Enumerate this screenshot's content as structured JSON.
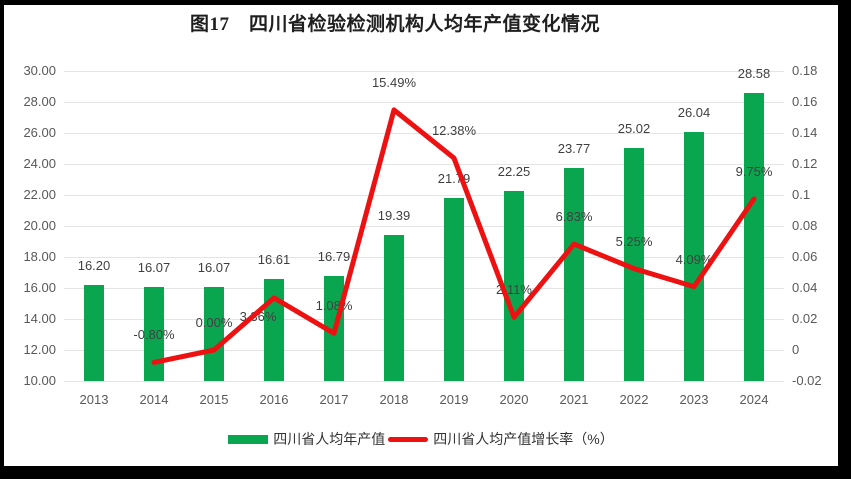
{
  "chart_data": {
    "type": "combo-bar-line",
    "title": "图17　四川省检验检测机构人均年产值变化情况",
    "categories": [
      "2013",
      "2014",
      "2015",
      "2016",
      "2017",
      "2018",
      "2019",
      "2020",
      "2021",
      "2022",
      "2023",
      "2024"
    ],
    "series": [
      {
        "name": "四川省人均年产值",
        "type": "bar",
        "axis": "left",
        "color": "#0aa64f",
        "values": [
          16.2,
          16.07,
          16.07,
          16.61,
          16.79,
          19.39,
          21.79,
          22.25,
          23.77,
          25.02,
          26.04,
          28.58
        ],
        "labels": [
          "16.20",
          "16.07",
          "16.07",
          "16.61",
          "16.79",
          "19.39",
          "21.79",
          "22.25",
          "23.77",
          "25.02",
          "26.04",
          "28.58"
        ]
      },
      {
        "name": "四川省人均产值增长率（%）",
        "type": "line",
        "axis": "right",
        "color": "#ed1111",
        "values": [
          null,
          -0.008,
          0.0,
          0.0336,
          0.0108,
          0.1549,
          0.1238,
          0.0211,
          0.0683,
          0.0525,
          0.0409,
          0.0975
        ],
        "labels": [
          null,
          "-0.80%",
          "0.00%",
          "3.36%",
          "1.08%",
          "15.49%",
          "12.38%",
          "2.11%",
          "6.83%",
          "5.25%",
          "4.09%",
          "9.75%"
        ]
      }
    ],
    "left_axis": {
      "min": 10,
      "max": 30,
      "ticks": [
        "30.00",
        "28.00",
        "26.00",
        "24.00",
        "22.00",
        "20.00",
        "18.00",
        "16.00",
        "14.00",
        "12.00",
        "10.00"
      ]
    },
    "right_axis": {
      "min": -0.02,
      "max": 0.18,
      "ticks": [
        "0.18",
        "0.16",
        "0.14",
        "0.12",
        "0.1",
        "0.08",
        "0.06",
        "0.04",
        "0.02",
        "0",
        "-0.02"
      ]
    },
    "grid": true,
    "legend_position": "bottom",
    "colors": {
      "grid": "#e4e4e4",
      "axis_text": "#595959",
      "data_label_text": "#3f3f3f",
      "frame": "#000000"
    }
  },
  "legend": {
    "items": [
      {
        "label": "四川省人均年产值",
        "color": "#0aa64f",
        "shape": "rect"
      },
      {
        "label": "四川省人均产值增长率（%）",
        "color": "#ed1111",
        "shape": "line"
      }
    ]
  }
}
